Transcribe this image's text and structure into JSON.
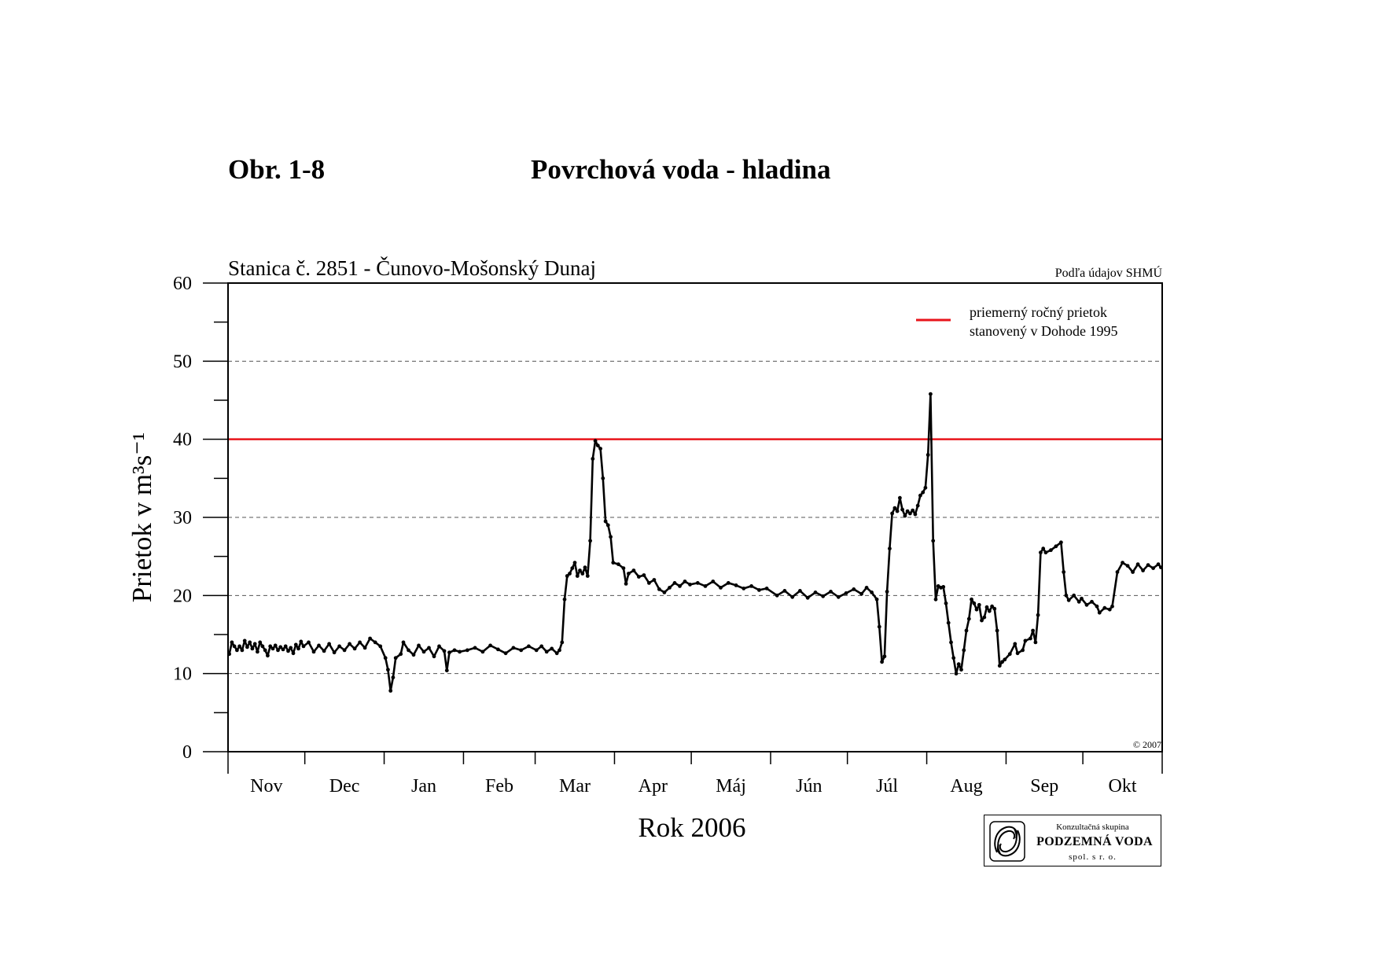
{
  "header": {
    "figure_number": "Obr. 1-8",
    "figure_title": "Povrchová voda - hladina"
  },
  "chart_data": {
    "type": "line",
    "subtitle": "Stanica č. 2851 - Čunovo-Mošonský Dunaj",
    "source": "Podľa údajov SHMÚ",
    "copyright": "© 2007",
    "ylabel": "Prietok v m³s⁻¹",
    "xlabel": "Rok 2006",
    "ylim": [
      0,
      60
    ],
    "yticks": [
      0,
      10,
      20,
      30,
      40,
      50,
      60
    ],
    "grid_y": [
      10,
      20,
      30,
      50
    ],
    "x_range": [
      "2005-11-01",
      "2006-10-31"
    ],
    "months": [
      "Nov",
      "Dec",
      "Jan",
      "Feb",
      "Mar",
      "Apr",
      "Máj",
      "Jún",
      "Júl",
      "Aug",
      "Sep",
      "Okt"
    ],
    "month_days": [
      30,
      31,
      31,
      28,
      31,
      30,
      31,
      30,
      31,
      31,
      30,
      31
    ],
    "legend_position": "top-right",
    "reference_line": {
      "value": 40,
      "color": "#e8141b",
      "label_line1": "priemerný ročný prietok",
      "label_line2": "stanovený v Dohode 1995"
    },
    "series": [
      {
        "color": "#000000",
        "points": [
          [
            "2005-11-01",
            12.5
          ],
          [
            "2005-11-02",
            14.0
          ],
          [
            "2005-11-03",
            13.5
          ],
          [
            "2005-11-04",
            13.0
          ],
          [
            "2005-11-05",
            13.5
          ],
          [
            "2005-11-06",
            13.0
          ],
          [
            "2005-11-07",
            14.2
          ],
          [
            "2005-11-08",
            13.4
          ],
          [
            "2005-11-09",
            14.0
          ],
          [
            "2005-11-10",
            13.2
          ],
          [
            "2005-11-11",
            13.8
          ],
          [
            "2005-11-12",
            12.8
          ],
          [
            "2005-11-13",
            14.0
          ],
          [
            "2005-11-14",
            13.5
          ],
          [
            "2005-11-15",
            13.0
          ],
          [
            "2005-11-16",
            12.3
          ],
          [
            "2005-11-17",
            13.5
          ],
          [
            "2005-11-18",
            13.2
          ],
          [
            "2005-11-19",
            13.6
          ],
          [
            "2005-11-20",
            13.0
          ],
          [
            "2005-11-21",
            13.4
          ],
          [
            "2005-11-22",
            13.1
          ],
          [
            "2005-11-23",
            13.5
          ],
          [
            "2005-11-24",
            12.9
          ],
          [
            "2005-11-25",
            13.3
          ],
          [
            "2005-11-26",
            12.6
          ],
          [
            "2005-11-27",
            13.7
          ],
          [
            "2005-11-28",
            13.2
          ],
          [
            "2005-11-29",
            14.1
          ],
          [
            "2005-11-30",
            13.5
          ],
          [
            "2005-12-02",
            14.0
          ],
          [
            "2005-12-04",
            12.8
          ],
          [
            "2005-12-06",
            13.6
          ],
          [
            "2005-12-08",
            12.9
          ],
          [
            "2005-12-10",
            13.8
          ],
          [
            "2005-12-12",
            12.7
          ],
          [
            "2005-12-14",
            13.5
          ],
          [
            "2005-12-16",
            13.0
          ],
          [
            "2005-12-18",
            13.8
          ],
          [
            "2005-12-20",
            13.2
          ],
          [
            "2005-12-22",
            14.0
          ],
          [
            "2005-12-24",
            13.3
          ],
          [
            "2005-12-26",
            14.5
          ],
          [
            "2005-12-28",
            14.0
          ],
          [
            "2005-12-30",
            13.5
          ],
          [
            "2006-01-01",
            12.0
          ],
          [
            "2006-01-02",
            10.5
          ],
          [
            "2006-01-03",
            7.8
          ],
          [
            "2006-01-04",
            9.5
          ],
          [
            "2006-01-05",
            12.0
          ],
          [
            "2006-01-07",
            12.5
          ],
          [
            "2006-01-08",
            14.0
          ],
          [
            "2006-01-10",
            13.0
          ],
          [
            "2006-01-12",
            12.4
          ],
          [
            "2006-01-14",
            13.6
          ],
          [
            "2006-01-16",
            12.8
          ],
          [
            "2006-01-18",
            13.3
          ],
          [
            "2006-01-20",
            12.2
          ],
          [
            "2006-01-22",
            13.5
          ],
          [
            "2006-01-24",
            12.9
          ],
          [
            "2006-01-25",
            10.4
          ],
          [
            "2006-01-26",
            12.7
          ],
          [
            "2006-01-28",
            13.0
          ],
          [
            "2006-01-30",
            12.8
          ],
          [
            "2006-02-02",
            13.0
          ],
          [
            "2006-02-05",
            13.3
          ],
          [
            "2006-02-08",
            12.8
          ],
          [
            "2006-02-11",
            13.6
          ],
          [
            "2006-02-14",
            13.1
          ],
          [
            "2006-02-17",
            12.6
          ],
          [
            "2006-02-20",
            13.3
          ],
          [
            "2006-02-23",
            13.0
          ],
          [
            "2006-02-26",
            13.5
          ],
          [
            "2006-03-01",
            13.0
          ],
          [
            "2006-03-03",
            13.5
          ],
          [
            "2006-03-05",
            12.8
          ],
          [
            "2006-03-07",
            13.2
          ],
          [
            "2006-03-09",
            12.6
          ],
          [
            "2006-03-10",
            13.0
          ],
          [
            "2006-03-11",
            14.0
          ],
          [
            "2006-03-12",
            19.5
          ],
          [
            "2006-03-13",
            22.5
          ],
          [
            "2006-03-14",
            22.8
          ],
          [
            "2006-03-15",
            23.5
          ],
          [
            "2006-03-16",
            24.2
          ],
          [
            "2006-03-17",
            22.5
          ],
          [
            "2006-03-18",
            23.2
          ],
          [
            "2006-03-19",
            22.8
          ],
          [
            "2006-03-20",
            23.6
          ],
          [
            "2006-03-21",
            22.5
          ],
          [
            "2006-03-22",
            27.0
          ],
          [
            "2006-03-23",
            37.5
          ],
          [
            "2006-03-24",
            39.8
          ],
          [
            "2006-03-25",
            39.2
          ],
          [
            "2006-03-26",
            38.8
          ],
          [
            "2006-03-27",
            35.0
          ],
          [
            "2006-03-28",
            29.5
          ],
          [
            "2006-03-29",
            29.0
          ],
          [
            "2006-03-30",
            27.5
          ],
          [
            "2006-03-31",
            24.2
          ],
          [
            "2006-04-02",
            24.0
          ],
          [
            "2006-04-04",
            23.5
          ],
          [
            "2006-04-05",
            21.5
          ],
          [
            "2006-04-06",
            22.8
          ],
          [
            "2006-04-08",
            23.2
          ],
          [
            "2006-04-10",
            22.4
          ],
          [
            "2006-04-12",
            22.6
          ],
          [
            "2006-04-14",
            21.6
          ],
          [
            "2006-04-16",
            22.0
          ],
          [
            "2006-04-18",
            20.8
          ],
          [
            "2006-04-20",
            20.4
          ],
          [
            "2006-04-22",
            21.0
          ],
          [
            "2006-04-24",
            21.6
          ],
          [
            "2006-04-26",
            21.2
          ],
          [
            "2006-04-28",
            21.8
          ],
          [
            "2006-04-30",
            21.4
          ],
          [
            "2006-05-03",
            21.6
          ],
          [
            "2006-05-06",
            21.2
          ],
          [
            "2006-05-09",
            21.8
          ],
          [
            "2006-05-12",
            21.0
          ],
          [
            "2006-05-15",
            21.6
          ],
          [
            "2006-05-18",
            21.3
          ],
          [
            "2006-05-21",
            20.9
          ],
          [
            "2006-05-24",
            21.2
          ],
          [
            "2006-05-27",
            20.7
          ],
          [
            "2006-05-30",
            20.9
          ],
          [
            "2006-06-03",
            20.0
          ],
          [
            "2006-06-06",
            20.6
          ],
          [
            "2006-06-09",
            19.8
          ],
          [
            "2006-06-12",
            20.6
          ],
          [
            "2006-06-15",
            19.7
          ],
          [
            "2006-06-18",
            20.4
          ],
          [
            "2006-06-21",
            19.9
          ],
          [
            "2006-06-24",
            20.5
          ],
          [
            "2006-06-27",
            19.8
          ],
          [
            "2006-06-30",
            20.3
          ],
          [
            "2006-07-03",
            20.8
          ],
          [
            "2006-07-06",
            20.2
          ],
          [
            "2006-07-08",
            21.0
          ],
          [
            "2006-07-10",
            20.4
          ],
          [
            "2006-07-12",
            19.5
          ],
          [
            "2006-07-13",
            16.0
          ],
          [
            "2006-07-14",
            11.5
          ],
          [
            "2006-07-15",
            12.2
          ],
          [
            "2006-07-16",
            20.5
          ],
          [
            "2006-07-17",
            26.0
          ],
          [
            "2006-07-18",
            30.5
          ],
          [
            "2006-07-19",
            31.2
          ],
          [
            "2006-07-20",
            30.8
          ],
          [
            "2006-07-21",
            32.5
          ],
          [
            "2006-07-22",
            31.0
          ],
          [
            "2006-07-23",
            30.2
          ],
          [
            "2006-07-24",
            30.8
          ],
          [
            "2006-07-25",
            30.5
          ],
          [
            "2006-07-26",
            30.9
          ],
          [
            "2006-07-27",
            30.4
          ],
          [
            "2006-07-28",
            31.5
          ],
          [
            "2006-07-29",
            32.8
          ],
          [
            "2006-07-30",
            33.2
          ],
          [
            "2006-07-31",
            33.8
          ],
          [
            "2006-08-01",
            38.0
          ],
          [
            "2006-08-02",
            45.8
          ],
          [
            "2006-08-03",
            27.0
          ],
          [
            "2006-08-04",
            19.5
          ],
          [
            "2006-08-05",
            21.2
          ],
          [
            "2006-08-06",
            21.0
          ],
          [
            "2006-08-07",
            21.1
          ],
          [
            "2006-08-08",
            19.0
          ],
          [
            "2006-08-09",
            16.5
          ],
          [
            "2006-08-10",
            14.0
          ],
          [
            "2006-08-11",
            12.0
          ],
          [
            "2006-08-12",
            10.0
          ],
          [
            "2006-08-13",
            11.2
          ],
          [
            "2006-08-14",
            10.5
          ],
          [
            "2006-08-15",
            13.0
          ],
          [
            "2006-08-16",
            15.5
          ],
          [
            "2006-08-17",
            17.0
          ],
          [
            "2006-08-18",
            19.5
          ],
          [
            "2006-08-19",
            19.0
          ],
          [
            "2006-08-20",
            18.2
          ],
          [
            "2006-08-21",
            18.8
          ],
          [
            "2006-08-22",
            16.8
          ],
          [
            "2006-08-23",
            17.2
          ],
          [
            "2006-08-24",
            18.5
          ],
          [
            "2006-08-25",
            18.0
          ],
          [
            "2006-08-26",
            18.6
          ],
          [
            "2006-08-27",
            18.3
          ],
          [
            "2006-08-28",
            15.5
          ],
          [
            "2006-08-29",
            11.0
          ],
          [
            "2006-08-30",
            11.5
          ],
          [
            "2006-08-31",
            11.8
          ],
          [
            "2006-09-02",
            12.5
          ],
          [
            "2006-09-04",
            13.8
          ],
          [
            "2006-09-05",
            12.6
          ],
          [
            "2006-09-07",
            13.0
          ],
          [
            "2006-09-08",
            14.2
          ],
          [
            "2006-09-10",
            14.5
          ],
          [
            "2006-09-11",
            15.5
          ],
          [
            "2006-09-12",
            14.0
          ],
          [
            "2006-09-13",
            17.5
          ],
          [
            "2006-09-14",
            25.5
          ],
          [
            "2006-09-15",
            26.0
          ],
          [
            "2006-09-16",
            25.5
          ],
          [
            "2006-09-18",
            25.8
          ],
          [
            "2006-09-20",
            26.3
          ],
          [
            "2006-09-22",
            26.8
          ],
          [
            "2006-09-23",
            23.0
          ],
          [
            "2006-09-24",
            20.0
          ],
          [
            "2006-09-25",
            19.4
          ],
          [
            "2006-09-27",
            20.0
          ],
          [
            "2006-09-29",
            19.2
          ],
          [
            "2006-09-30",
            19.6
          ],
          [
            "2006-10-02",
            18.8
          ],
          [
            "2006-10-04",
            19.2
          ],
          [
            "2006-10-06",
            18.6
          ],
          [
            "2006-10-07",
            17.8
          ],
          [
            "2006-10-09",
            18.4
          ],
          [
            "2006-10-11",
            18.2
          ],
          [
            "2006-10-12",
            18.6
          ],
          [
            "2006-10-14",
            23.0
          ],
          [
            "2006-10-16",
            24.2
          ],
          [
            "2006-10-18",
            23.8
          ],
          [
            "2006-10-20",
            23.0
          ],
          [
            "2006-10-22",
            24.0
          ],
          [
            "2006-10-24",
            23.2
          ],
          [
            "2006-10-26",
            23.9
          ],
          [
            "2006-10-28",
            23.5
          ],
          [
            "2006-10-30",
            24.0
          ],
          [
            "2006-10-31",
            23.6
          ]
        ]
      }
    ]
  },
  "logo": {
    "small_text": "Konzultačná skupina",
    "main_text": "PODZEMNÁ VODA",
    "sub_text": "spol. s r. o."
  }
}
